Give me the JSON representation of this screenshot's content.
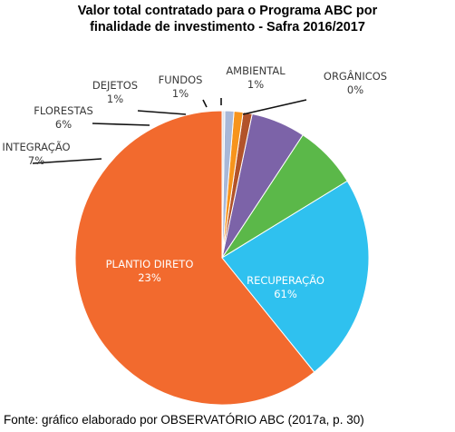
{
  "chart_data": {
    "type": "pie",
    "title_lines": [
      "Valor total contratado para o Programa ABC por",
      "finalidade de investimento - Safra 2016/2017"
    ],
    "source": "Fonte: gráfico elaborado por OBSERVATÓRIO ABC (2017a, p. 30)",
    "slices": [
      {
        "name": "RECUPERAÇÃO",
        "label": "61%",
        "value": 61,
        "color": "#f26a2e"
      },
      {
        "name": "PLANTIO DIRETO",
        "label": "23%",
        "value": 23,
        "color": "#2fc1ef"
      },
      {
        "name": "INTEGRAÇÃO",
        "label": "7%",
        "value": 7,
        "color": "#5bb849"
      },
      {
        "name": "FLORESTAS",
        "label": "6%",
        "value": 6,
        "color": "#7c63a8"
      },
      {
        "name": "DEJETOS",
        "label": "1%",
        "value": 1,
        "color": "#b2532a"
      },
      {
        "name": "FUNDOS",
        "label": "1%",
        "value": 1,
        "color": "#f7941d"
      },
      {
        "name": "AMBIENTAL",
        "label": "1%",
        "value": 1,
        "color": "#a8b8d8"
      },
      {
        "name": "ORGÂNICOS",
        "label": "0%",
        "value": 0.3,
        "color": "#e0e3e8"
      }
    ]
  }
}
